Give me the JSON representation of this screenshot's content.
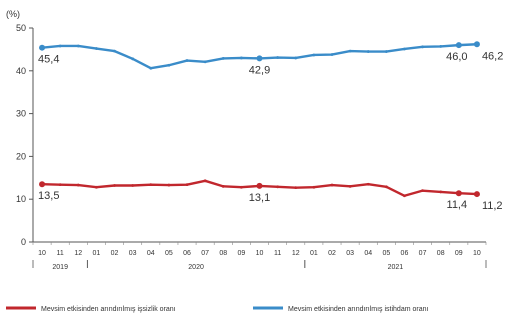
{
  "chart_data": {
    "type": "line",
    "ylabel": "(%)",
    "ylim": [
      0,
      50
    ],
    "yticks": [
      0,
      10,
      20,
      30,
      40,
      50
    ],
    "months": [
      "10",
      "11",
      "12",
      "01",
      "02",
      "03",
      "04",
      "05",
      "06",
      "07",
      "08",
      "09",
      "10",
      "11",
      "12",
      "01",
      "02",
      "03",
      "04",
      "05",
      "06",
      "07",
      "08",
      "09",
      "10"
    ],
    "years": [
      {
        "label": "2019",
        "start": 0,
        "end": 2
      },
      {
        "label": "2020",
        "start": 3,
        "end": 14
      },
      {
        "label": "2021",
        "start": 15,
        "end": 24
      }
    ],
    "series": [
      {
        "name": "Mevsim etkisinden arındırılmış işsizlik oranı",
        "color": "#c1272d",
        "values": [
          13.5,
          13.4,
          13.3,
          12.8,
          13.2,
          13.2,
          13.4,
          13.3,
          13.4,
          14.3,
          13.0,
          12.8,
          13.1,
          12.9,
          12.7,
          12.8,
          13.3,
          13.0,
          13.5,
          12.9,
          10.8,
          12.0,
          11.7,
          11.4,
          11.2
        ],
        "labels": [
          {
            "index": 0,
            "text": "13,5"
          },
          {
            "index": 12,
            "text": "13,1"
          },
          {
            "index": 23,
            "text": "11,4"
          },
          {
            "index": 24,
            "text": "11,2"
          }
        ]
      },
      {
        "name": "Mevsim etkisinden arındırılmış istihdam oranı",
        "color": "#3a8cc9",
        "values": [
          45.4,
          45.8,
          45.8,
          45.2,
          44.6,
          42.8,
          40.6,
          41.3,
          42.4,
          42.1,
          42.9,
          43.0,
          42.9,
          43.1,
          43.0,
          43.7,
          43.8,
          44.6,
          44.5,
          44.5,
          45.1,
          45.6,
          45.7,
          46.0,
          46.2
        ],
        "labels": [
          {
            "index": 0,
            "text": "45,4"
          },
          {
            "index": 12,
            "text": "42,9"
          },
          {
            "index": 23,
            "text": "46,0"
          },
          {
            "index": 24,
            "text": "46,2"
          }
        ]
      }
    ],
    "legend_position": "bottom"
  }
}
